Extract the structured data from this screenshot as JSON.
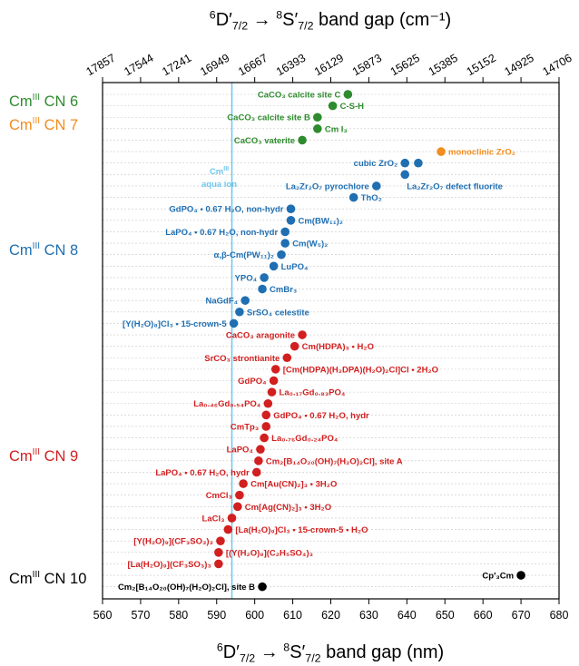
{
  "chart_data": {
    "type": "scatter",
    "title": "",
    "xlabel": "",
    "xlim": [
      560,
      680
    ],
    "x_ticks": [
      560,
      570,
      580,
      590,
      600,
      610,
      620,
      630,
      640,
      650,
      660,
      670,
      680
    ],
    "bottom_axis_label": "⁶D′7/2 → ⁸S′7/2 band gap (nm)",
    "top_axis_label": "⁶D′7/2 → ⁸S′7/2 band gap (cm⁻¹)",
    "top_ticks": [
      17857,
      17544,
      17241,
      16949,
      16667,
      16393,
      16129,
      15873,
      15625,
      15385,
      15152,
      14925,
      14706
    ],
    "reference_line": {
      "x": 594,
      "label_lines": [
        "CmIII",
        "aqua ion"
      ],
      "color": "#6ec6ee"
    },
    "colors": {
      "CN6": "#2e8b2e",
      "CN7": "#f28c1e",
      "CN8": "#1f6fb2",
      "CN9": "#d21f1f",
      "CN10": "#000000"
    },
    "groups": [
      {
        "name": "CmIII CN 6",
        "label_main": "Cm",
        "label_sup": "III",
        "label_rest": " CN 6",
        "color_key": "CN6",
        "points": [
          {
            "label": "CaCO₃ calcite site C",
            "x": 624.5,
            "side": "left"
          },
          {
            "label": "C-S-H",
            "x": 620.5,
            "side": "right"
          },
          {
            "label": "CaCO₃ calcite site B",
            "x": 616.5,
            "side": "left"
          },
          {
            "label": "Cm I₃",
            "x": 616.5,
            "side": "right"
          },
          {
            "label": "CaCO₃ vaterite",
            "x": 612.5,
            "side": "left"
          }
        ]
      },
      {
        "name": "CmIII CN 7",
        "label_main": "Cm",
        "label_sup": "III",
        "label_rest": " CN 7",
        "color_key": "CN7",
        "points": [
          {
            "label": "monoclinic ZrO₂",
            "x": 649,
            "side": "right"
          }
        ]
      },
      {
        "name": "CmIII CN 8",
        "label_main": "Cm",
        "label_sup": "III",
        "label_rest": " CN 8",
        "color_key": "CN8",
        "points": [
          {
            "label": "cubic ZrO₂",
            "x": 639.5,
            "side": "left"
          },
          {
            "label": "La₂Zr₂O₇ defect fluorite",
            "x": 639.5,
            "x2": 643,
            "side": "right-below"
          },
          {
            "label": "La₂Zr₂O₇ pyrochlore",
            "x": 632,
            "side": "left"
          },
          {
            "label": "ThO₂",
            "x": 626,
            "side": "right"
          },
          {
            "label": "GdPO₄ • 0.67 H₂O, non-hydr",
            "x": 609.5,
            "side": "left"
          },
          {
            "label": "Cm(BW₁₁)₂",
            "x": 609.5,
            "side": "right"
          },
          {
            "label": "LaPO₄ • 0.67 H₂O, non-hydr",
            "x": 608,
            "side": "left"
          },
          {
            "label": "Cm(W₅)₂",
            "x": 608,
            "side": "right"
          },
          {
            "label": "α,β-Cm(PW₁₁)₂",
            "x": 607,
            "side": "left"
          },
          {
            "label": "LuPO₄",
            "x": 605,
            "side": "right"
          },
          {
            "label": "YPO₄",
            "x": 602.5,
            "side": "left"
          },
          {
            "label": "CmBr₃",
            "x": 602,
            "side": "right"
          },
          {
            "label": "NaGdF₄",
            "x": 597.5,
            "side": "left"
          },
          {
            "label": "SrSO₄ celestite",
            "x": 596,
            "side": "right"
          },
          {
            "label": "[Y(H₂O)₈]Cl₃ • 15-crown-5",
            "x": 594.5,
            "side": "left"
          }
        ]
      },
      {
        "name": "CmIII CN 9",
        "label_main": "Cm",
        "label_sup": "III",
        "label_rest": " CN 9",
        "color_key": "CN9",
        "points": [
          {
            "label": "CaCO₃ aragonite",
            "x": 612.5,
            "side": "left"
          },
          {
            "label": "Cm(HDPA)₃ • H₂O",
            "x": 610.5,
            "side": "right"
          },
          {
            "label": "SrCO₃ strontianite",
            "x": 608.5,
            "side": "left"
          },
          {
            "label": "[Cm(HDPA)(H₂DPA)(H₂O)₂Cl]Cl • 2H₂O",
            "x": 605.5,
            "side": "right"
          },
          {
            "label": "GdPO₄",
            "x": 605,
            "side": "left"
          },
          {
            "label": "La₀.₁₇Gd₀.₈₃PO₄",
            "x": 604.5,
            "side": "right"
          },
          {
            "label": "La₀.₄₆Gd₀.₅₄PO₄",
            "x": 603.5,
            "side": "left"
          },
          {
            "label": "GdPO₄ • 0.67 H₂O, hydr",
            "x": 603,
            "side": "right"
          },
          {
            "label": "CmTp₃",
            "x": 603,
            "side": "left"
          },
          {
            "label": "La₀.₇₆Gd₀.₂₄PO₄",
            "x": 602.5,
            "side": "right"
          },
          {
            "label": "LaPO₄",
            "x": 601.5,
            "side": "left"
          },
          {
            "label": "Cm₂[B₁₄O₂₀(OH)₇(H₂O)₂Cl], site A",
            "x": 601,
            "side": "right"
          },
          {
            "label": "LaPO₄ • 0.67 H₂O, hydr",
            "x": 600.5,
            "side": "left"
          },
          {
            "label": "Cm[Au(CN)₂]₃ • 3H₂O",
            "x": 597,
            "side": "right"
          },
          {
            "label": "CmCl₃",
            "x": 596,
            "side": "left"
          },
          {
            "label": "Cm[Ag(CN)₂]₃ • 3H₂O",
            "x": 595.5,
            "side": "right"
          },
          {
            "label": "LaCl₃",
            "x": 594,
            "side": "left"
          },
          {
            "label": "[La(H₂O)₉]Cl₃ • 15-crown-5 • H₂O",
            "x": 593,
            "side": "right"
          },
          {
            "label": "[Y(H₂O)₉](CF₃SO₃)₃",
            "x": 591,
            "side": "left"
          },
          {
            "label": "[(Y(H₂O)₉](C₂H₅SO₄)₃",
            "x": 590.5,
            "side": "right"
          },
          {
            "label": "[La(H₂O)₉](CF₃SO₃)₃",
            "x": 590.5,
            "side": "left"
          }
        ]
      },
      {
        "name": "CmIII CN 10",
        "label_main": "Cm",
        "label_sup": "III",
        "label_rest": " CN 10",
        "color_key": "CN10",
        "points": [
          {
            "label": "Cp′₃Cm",
            "x": 670,
            "side": "left"
          },
          {
            "label": "Cm₂[B₁₄O₂₀(OH)₇(H₂O)₂Cl], site B",
            "x": 602,
            "side": "left"
          }
        ]
      }
    ]
  }
}
